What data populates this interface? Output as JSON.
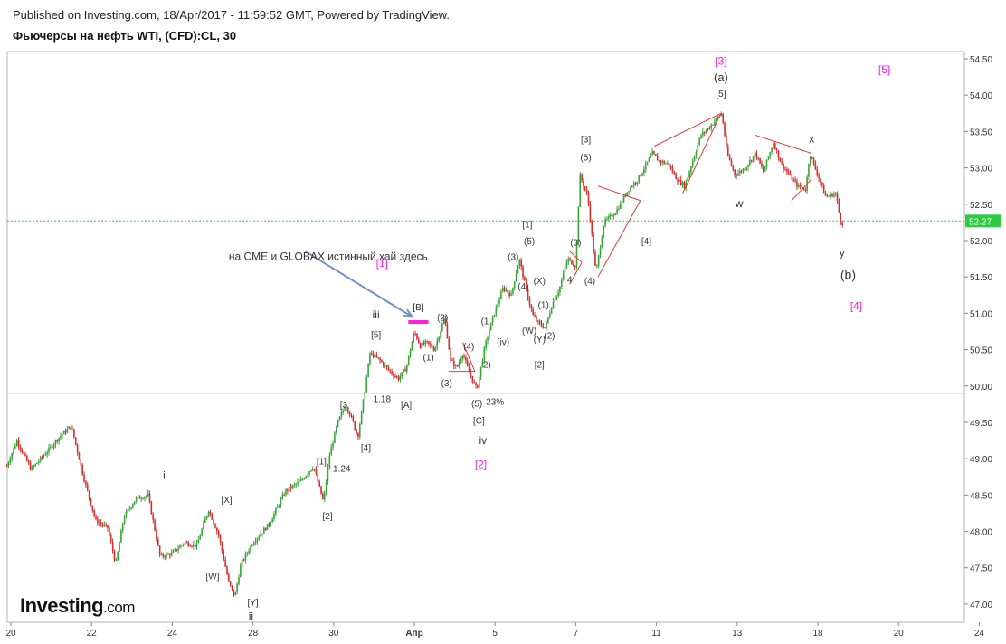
{
  "header": {
    "published": "Published on Investing.com, 18/Apr/2017 - 11:59:52 GMT, Powered by TradingView.",
    "title": "Фьючерсы на нефть WTI, (CFD):CL, 30"
  },
  "logo": {
    "name": "Investing",
    "suffix": ".com"
  },
  "colors": {
    "up": "#3aa33a",
    "down": "#d32f2f",
    "trendline": "#e53935",
    "magenta": "#ff1fd8",
    "support": "#7fb2e5",
    "current": "#2ecc40",
    "arrow": "#6f8fc7"
  },
  "chart_data": {
    "type": "candlestick",
    "ylim": [
      46.75,
      54.6
    ],
    "y_ticks": [
      "47.00",
      "47.50",
      "48.00",
      "48.50",
      "49.00",
      "49.50",
      "50.00",
      "50.50",
      "51.00",
      "51.50",
      "52.00",
      "52.50",
      "53.00",
      "53.50",
      "54.00",
      "54.50"
    ],
    "x_ticks": [
      {
        "label": "20",
        "t": 0
      },
      {
        "label": "22",
        "t": 2
      },
      {
        "label": "24",
        "t": 4
      },
      {
        "label": "28",
        "t": 6
      },
      {
        "label": "30",
        "t": 8
      },
      {
        "label": "Апр",
        "t": 10
      },
      {
        "label": "5",
        "t": 12
      },
      {
        "label": "7",
        "t": 14
      },
      {
        "label": "11",
        "t": 16
      },
      {
        "label": "13",
        "t": 18
      },
      {
        "label": "18",
        "t": 20
      },
      {
        "label": "20",
        "t": 22
      },
      {
        "label": "24",
        "t": 24
      }
    ],
    "current_price": {
      "value": 52.27,
      "label": "52.27"
    },
    "support_level": 49.9,
    "price_path": [
      [
        -0.1,
        48.9
      ],
      [
        0.15,
        49.25
      ],
      [
        0.5,
        48.85
      ],
      [
        0.9,
        49.1
      ],
      [
        1.2,
        49.3
      ],
      [
        1.5,
        49.45
      ],
      [
        1.8,
        48.75
      ],
      [
        2.1,
        48.15
      ],
      [
        2.4,
        48.05
      ],
      [
        2.6,
        47.55
      ],
      [
        2.8,
        48.2
      ],
      [
        3.1,
        48.45
      ],
      [
        3.4,
        48.5
      ],
      [
        3.7,
        47.65
      ],
      [
        4.0,
        47.7
      ],
      [
        4.3,
        47.85
      ],
      [
        4.6,
        47.8
      ],
      [
        4.9,
        48.3
      ],
      [
        5.15,
        47.95
      ],
      [
        5.4,
        47.3
      ],
      [
        5.55,
        47.1
      ],
      [
        5.7,
        47.55
      ],
      [
        6.0,
        47.85
      ],
      [
        6.4,
        48.1
      ],
      [
        6.8,
        48.55
      ],
      [
        7.2,
        48.7
      ],
      [
        7.5,
        48.9
      ],
      [
        7.75,
        48.4
      ],
      [
        7.9,
        49.05
      ],
      [
        8.1,
        49.5
      ],
      [
        8.3,
        49.75
      ],
      [
        8.45,
        49.55
      ],
      [
        8.6,
        49.3
      ],
      [
        8.75,
        49.85
      ],
      [
        8.9,
        50.45
      ],
      [
        9.15,
        50.35
      ],
      [
        9.4,
        50.2
      ],
      [
        9.6,
        50.1
      ],
      [
        9.8,
        50.25
      ],
      [
        10.0,
        50.75
      ],
      [
        10.15,
        50.55
      ],
      [
        10.3,
        50.6
      ],
      [
        10.5,
        50.5
      ],
      [
        10.75,
        50.95
      ],
      [
        10.9,
        50.35
      ],
      [
        11.05,
        50.25
      ],
      [
        11.2,
        50.45
      ],
      [
        11.35,
        50.2
      ],
      [
        11.55,
        49.95
      ],
      [
        11.75,
        50.55
      ],
      [
        11.95,
        50.95
      ],
      [
        12.2,
        51.35
      ],
      [
        12.4,
        51.25
      ],
      [
        12.6,
        51.75
      ],
      [
        12.8,
        51.25
      ],
      [
        12.95,
        50.95
      ],
      [
        13.1,
        50.85
      ],
      [
        13.25,
        50.8
      ],
      [
        13.4,
        51.1
      ],
      [
        13.6,
        51.35
      ],
      [
        13.8,
        51.75
      ],
      [
        14.0,
        51.65
      ],
      [
        14.1,
        52.9
      ],
      [
        14.3,
        52.6
      ],
      [
        14.5,
        51.55
      ],
      [
        14.7,
        52.25
      ],
      [
        15.0,
        52.4
      ],
      [
        15.3,
        52.7
      ],
      [
        15.55,
        52.85
      ],
      [
        15.75,
        53.05
      ],
      [
        15.9,
        53.2
      ],
      [
        16.05,
        53.1
      ],
      [
        16.3,
        53.05
      ],
      [
        16.5,
        52.85
      ],
      [
        16.7,
        52.75
      ],
      [
        16.9,
        53.1
      ],
      [
        17.1,
        53.45
      ],
      [
        17.3,
        53.55
      ],
      [
        17.5,
        53.68
      ],
      [
        17.62,
        53.75
      ],
      [
        17.75,
        53.2
      ],
      [
        17.95,
        52.9
      ],
      [
        18.2,
        53.0
      ],
      [
        18.45,
        53.2
      ],
      [
        18.65,
        52.95
      ],
      [
        18.9,
        53.35
      ],
      [
        19.1,
        53.05
      ],
      [
        19.3,
        52.9
      ],
      [
        19.5,
        52.75
      ],
      [
        19.7,
        52.7
      ],
      [
        19.8,
        53.2
      ],
      [
        20.0,
        52.9
      ],
      [
        20.2,
        52.6
      ],
      [
        20.45,
        52.65
      ],
      [
        20.55,
        52.3
      ],
      [
        20.62,
        52.22
      ]
    ],
    "trendlines": [
      [
        [
          15.95,
          53.3
        ],
        [
          17.6,
          53.75
        ]
      ],
      [
        [
          16.65,
          52.65
        ],
        [
          17.6,
          53.75
        ]
      ],
      [
        [
          18.45,
          53.45
        ],
        [
          19.85,
          53.2
        ]
      ],
      [
        [
          19.35,
          52.55
        ],
        [
          19.85,
          52.85
        ]
      ],
      [
        [
          14.55,
          52.75
        ],
        [
          15.6,
          52.55
        ]
      ],
      [
        [
          14.55,
          51.5
        ],
        [
          15.6,
          52.55
        ]
      ],
      [
        [
          13.85,
          51.85
        ],
        [
          14.15,
          51.7
        ]
      ],
      [
        [
          13.85,
          51.4
        ],
        [
          14.15,
          51.7
        ]
      ],
      [
        [
          11.2,
          50.6
        ],
        [
          11.5,
          50.2
        ]
      ],
      [
        [
          10.85,
          50.2
        ],
        [
          11.5,
          50.2
        ]
      ]
    ],
    "pink_bar": [
      [
        9.85,
        50.88
      ],
      [
        10.35,
        50.88
      ]
    ],
    "arrow": [
      [
        7.3,
        51.85
      ],
      [
        9.95,
        50.95
      ]
    ],
    "annotations": [
      {
        "text": "[3]",
        "t": 17.6,
        "v": 54.42,
        "color": "magenta",
        "size": 12
      },
      {
        "text": "(a)",
        "t": 17.6,
        "v": 54.19,
        "color": "dark",
        "size": 13
      },
      {
        "text": "[5]",
        "t": 17.6,
        "v": 53.98,
        "color": "dark",
        "size": 10
      },
      {
        "text": "[5]",
        "t": 21.65,
        "v": 54.3,
        "color": "magenta",
        "size": 12
      },
      {
        "text": "[3]",
        "t": 14.25,
        "v": 53.35,
        "color": "dark",
        "size": 10
      },
      {
        "text": "(5)",
        "t": 14.25,
        "v": 53.1,
        "color": "dark",
        "size": 10
      },
      {
        "text": "[1]",
        "t": 12.8,
        "v": 52.18,
        "color": "dark",
        "size": 10
      },
      {
        "text": "(5)",
        "t": 12.85,
        "v": 51.95,
        "color": "dark",
        "size": 10
      },
      {
        "text": "(3)",
        "t": 14.0,
        "v": 51.93,
        "color": "dark",
        "size": 10
      },
      {
        "text": "[4]",
        "t": 15.75,
        "v": 51.95,
        "color": "dark",
        "size": 10
      },
      {
        "text": "(4)",
        "t": 14.35,
        "v": 51.4,
        "color": "dark",
        "size": 10
      },
      {
        "text": "4",
        "t": 13.85,
        "v": 51.42,
        "color": "dark",
        "size": 10
      },
      {
        "text": "w",
        "t": 18.05,
        "v": 52.46,
        "color": "dark",
        "size": 12
      },
      {
        "text": "x",
        "t": 19.85,
        "v": 53.35,
        "color": "dark",
        "size": 12
      },
      {
        "text": "y",
        "t": 20.6,
        "v": 51.78,
        "color": "dark",
        "size": 12
      },
      {
        "text": "(b)",
        "t": 20.75,
        "v": 51.47,
        "color": "dark",
        "size": 14
      },
      {
        "text": "[4]",
        "t": 20.95,
        "v": 51.05,
        "color": "magenta",
        "size": 12
      },
      {
        "text": "(3)",
        "t": 12.45,
        "v": 51.73,
        "color": "dark",
        "size": 10
      },
      {
        "text": "(4)",
        "t": 12.7,
        "v": 51.33,
        "color": "dark",
        "size": 10
      },
      {
        "text": "(X)",
        "t": 13.1,
        "v": 51.4,
        "color": "dark",
        "size": 10
      },
      {
        "text": "(1)",
        "t": 13.2,
        "v": 51.07,
        "color": "dark",
        "size": 10
      },
      {
        "text": "(W)",
        "t": 12.85,
        "v": 50.72,
        "color": "dark",
        "size": 10
      },
      {
        "text": "(Y)",
        "t": 13.1,
        "v": 50.6,
        "color": "dark",
        "size": 10
      },
      {
        "text": "(2)",
        "t": 13.35,
        "v": 50.65,
        "color": "dark",
        "size": 10
      },
      {
        "text": "(1",
        "t": 11.75,
        "v": 50.85,
        "color": "dark",
        "size": 10
      },
      {
        "text": "(iv)",
        "t": 12.2,
        "v": 50.56,
        "color": "dark",
        "size": 10
      },
      {
        "text": "[2]",
        "t": 13.1,
        "v": 50.25,
        "color": "dark",
        "size": 10
      },
      {
        "text": "(2)",
        "t": 10.7,
        "v": 50.9,
        "color": "dark",
        "size": 10
      },
      {
        "text": "(4)",
        "t": 11.35,
        "v": 50.5,
        "color": "dark",
        "size": 10
      },
      {
        "text": "2)",
        "t": 11.8,
        "v": 50.25,
        "color": "dark",
        "size": 10
      },
      {
        "text": "(1)",
        "t": 10.35,
        "v": 50.35,
        "color": "dark",
        "size": 10
      },
      {
        "text": "(3)",
        "t": 10.8,
        "v": 50.0,
        "color": "dark",
        "size": 10
      },
      {
        "text": "[B]",
        "t": 10.1,
        "v": 51.04,
        "color": "dark",
        "size": 10
      },
      {
        "text": "iii",
        "t": 9.05,
        "v": 50.93,
        "color": "dark",
        "size": 12
      },
      {
        "text": "[5]",
        "t": 9.05,
        "v": 50.66,
        "color": "dark",
        "size": 10
      },
      {
        "text": "[1]",
        "t": 9.2,
        "v": 51.64,
        "color": "magenta",
        "size": 12
      },
      {
        "text": "1.18",
        "t": 9.2,
        "v": 49.78,
        "color": "dark",
        "size": 10
      },
      {
        "text": "[A]",
        "t": 9.8,
        "v": 49.7,
        "color": "dark",
        "size": 10
      },
      {
        "text": "(5)",
        "t": 11.55,
        "v": 49.72,
        "color": "dark",
        "size": 10
      },
      {
        "text": "23%",
        "t": 12.0,
        "v": 49.74,
        "color": "dark",
        "size": 10
      },
      {
        "text": "[C]",
        "t": 11.6,
        "v": 49.48,
        "color": "dark",
        "size": 10
      },
      {
        "text": "iv",
        "t": 11.7,
        "v": 49.2,
        "color": "dark",
        "size": 12
      },
      {
        "text": "[2]",
        "t": 11.65,
        "v": 48.87,
        "color": "magenta",
        "size": 12
      },
      {
        "text": "[3",
        "t": 8.25,
        "v": 49.7,
        "color": "dark",
        "size": 10
      },
      {
        "text": "[4]",
        "t": 8.8,
        "v": 49.11,
        "color": "dark",
        "size": 10
      },
      {
        "text": "[1]",
        "t": 7.7,
        "v": 48.92,
        "color": "dark",
        "size": 10
      },
      {
        "text": "1.24",
        "t": 8.2,
        "v": 48.82,
        "color": "dark",
        "size": 10
      },
      {
        "text": "[2]",
        "t": 7.85,
        "v": 48.17,
        "color": "dark",
        "size": 10
      },
      {
        "text": "i",
        "t": 3.8,
        "v": 48.72,
        "color": "dark",
        "size": 12
      },
      {
        "text": "[X]",
        "t": 5.35,
        "v": 48.39,
        "color": "dark",
        "size": 10
      },
      {
        "text": "[W]",
        "t": 5.0,
        "v": 47.34,
        "color": "dark",
        "size": 10
      },
      {
        "text": "[Y]",
        "t": 6.0,
        "v": 46.98,
        "color": "dark",
        "size": 10
      },
      {
        "text": "ii",
        "t": 5.95,
        "v": 46.78,
        "color": "dark",
        "size": 12
      },
      {
        "text": "на CME и GLOBAX истинный хай здесь",
        "t": 5.4,
        "v": 51.73,
        "color": "dark",
        "size": 12
      }
    ]
  }
}
